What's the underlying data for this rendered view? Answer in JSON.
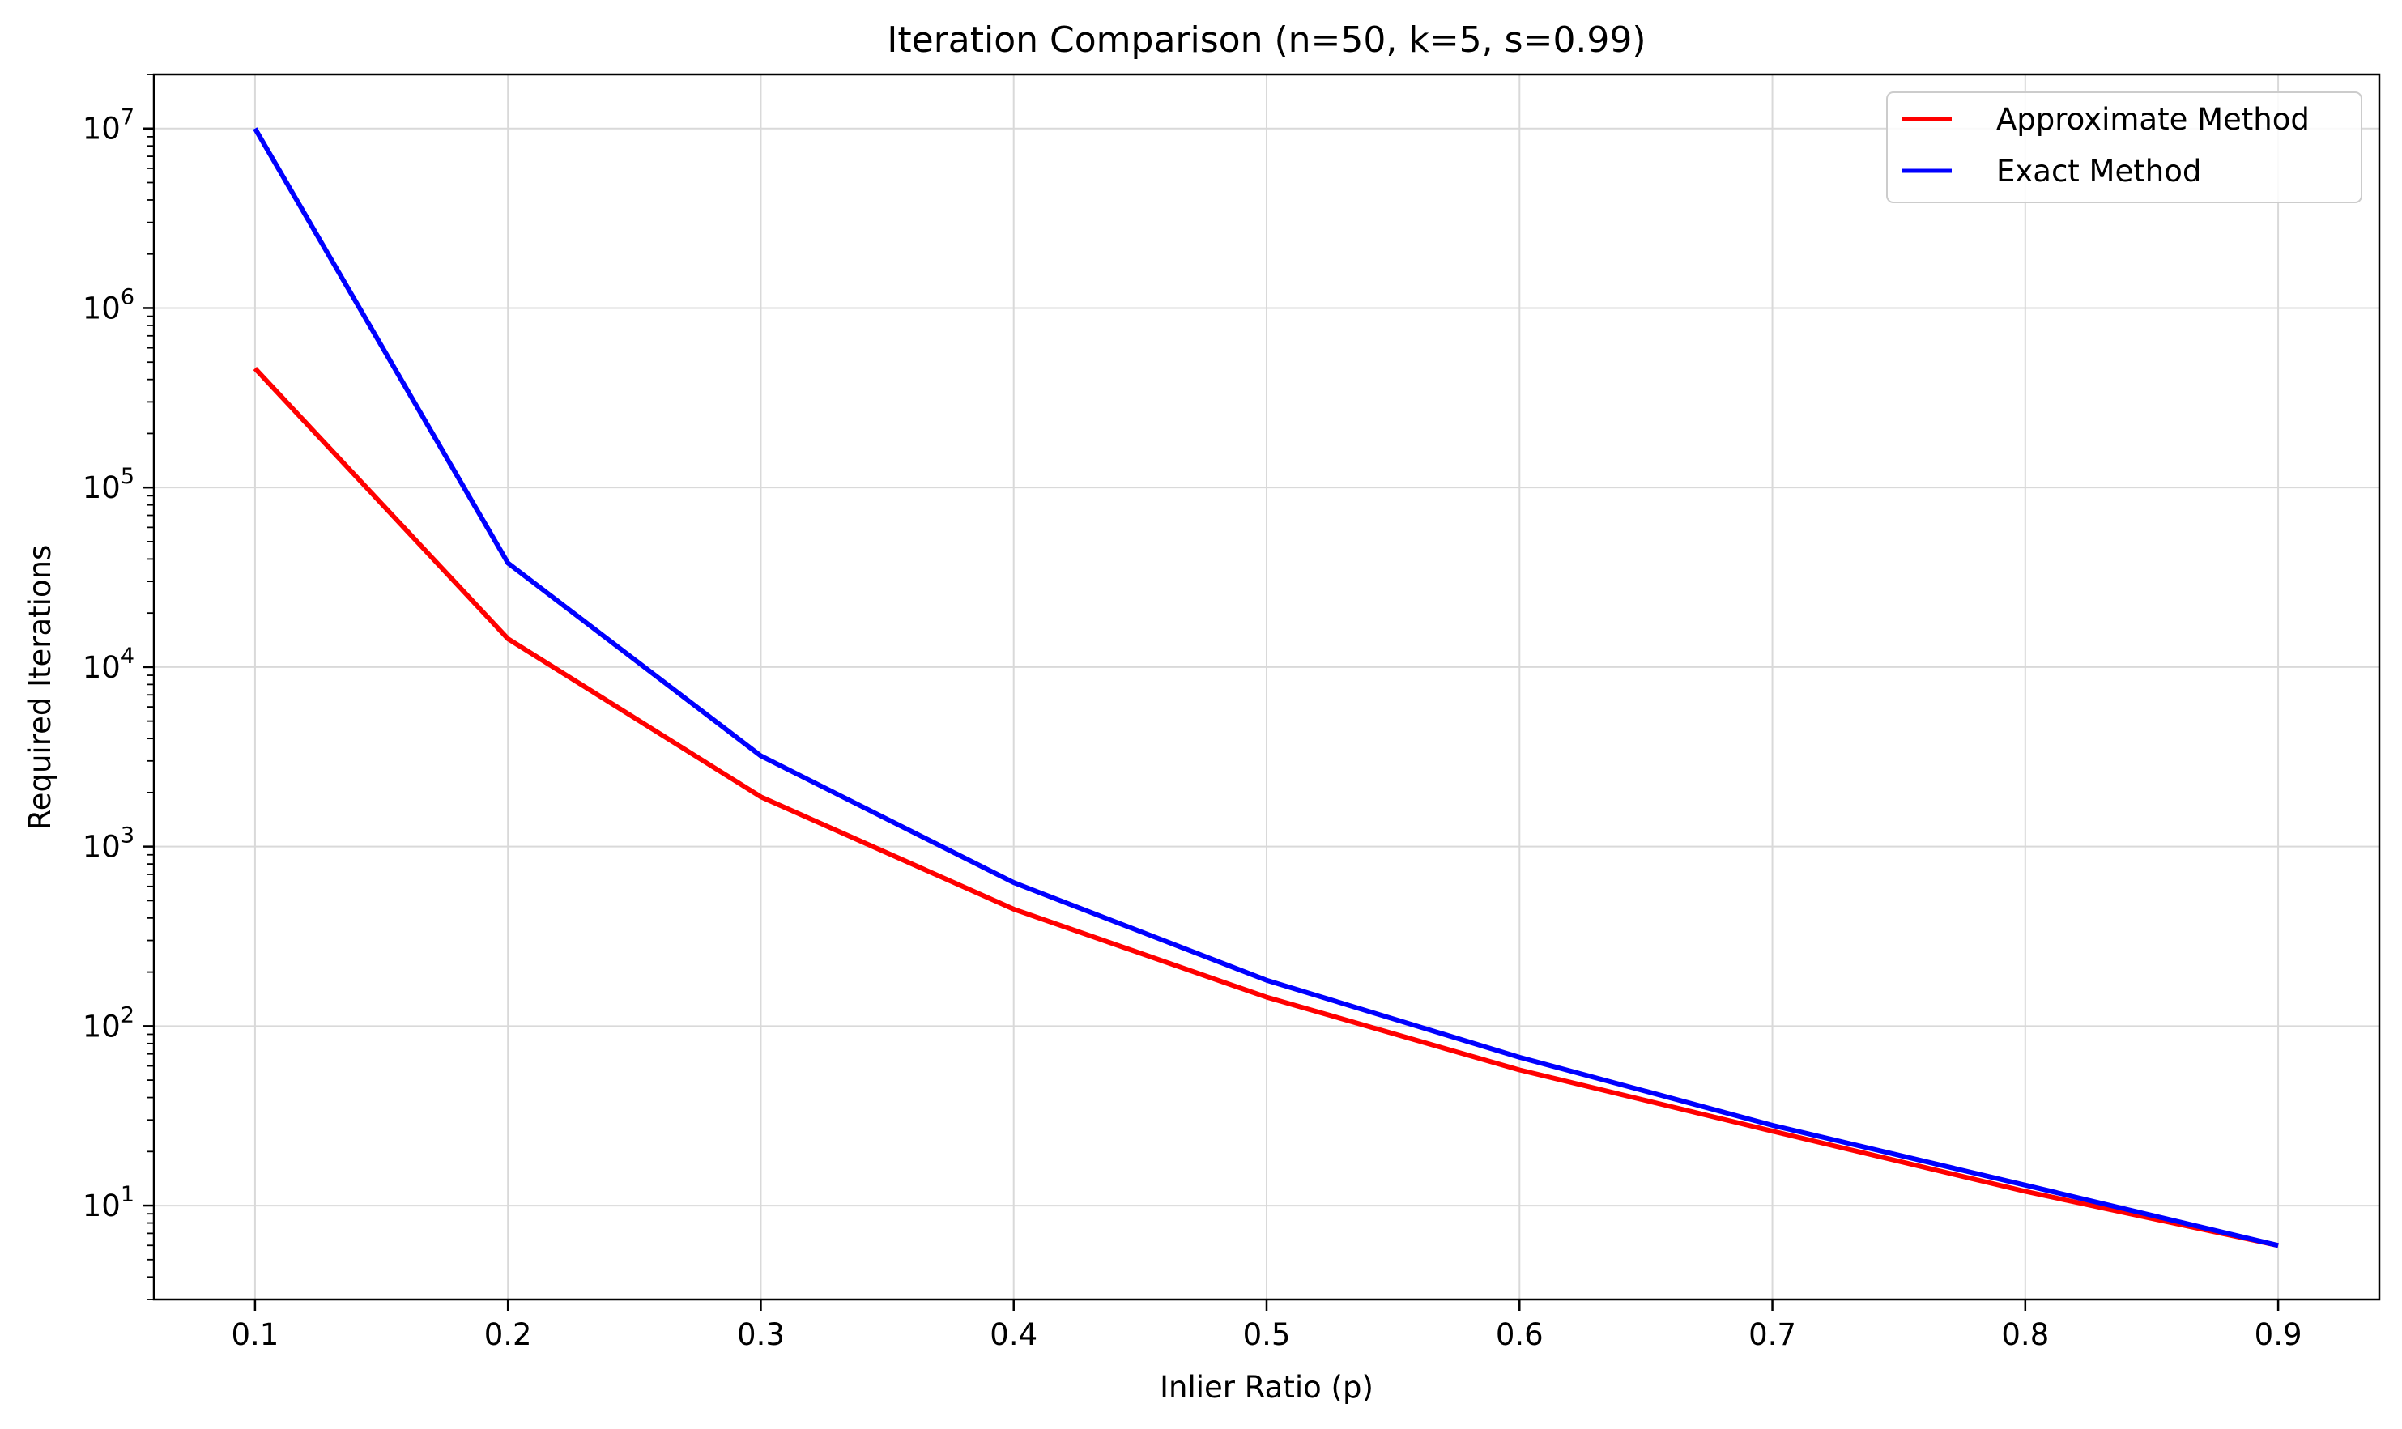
{
  "chart_data": {
    "type": "line",
    "title": "Iteration Comparison (n=50, k=5, s=0.99)",
    "xlabel": "Inlier Ratio (p)",
    "ylabel": "Required Iterations",
    "yscale": "log",
    "grid": true,
    "legend_position": "top-right",
    "x": [
      0.1,
      0.2,
      0.3,
      0.4,
      0.5,
      0.6,
      0.7,
      0.8,
      0.9
    ],
    "xlim": [
      0.06,
      0.94
    ],
    "ylim": [
      3,
      20000000
    ],
    "xticks": [
      "0.1",
      "0.2",
      "0.3",
      "0.4",
      "0.5",
      "0.6",
      "0.7",
      "0.8",
      "0.9"
    ],
    "yticks": [
      {
        "base": "10",
        "exp": "1",
        "value": 10
      },
      {
        "base": "10",
        "exp": "2",
        "value": 100
      },
      {
        "base": "10",
        "exp": "3",
        "value": 1000
      },
      {
        "base": "10",
        "exp": "4",
        "value": 10000
      },
      {
        "base": "10",
        "exp": "5",
        "value": 100000
      },
      {
        "base": "10",
        "exp": "6",
        "value": 1000000
      },
      {
        "base": "10",
        "exp": "7",
        "value": 10000000
      }
    ],
    "series": [
      {
        "name": "Approximate Method",
        "color": "#ff0000",
        "values": [
          460515,
          14389,
          1893,
          448,
          145,
          57,
          26,
          12,
          6
        ]
      },
      {
        "name": "Exact Method",
        "color": "#0000ff",
        "values": [
          10000000,
          38000,
          3200,
          630,
          180,
          67,
          28,
          13,
          6
        ]
      }
    ]
  }
}
